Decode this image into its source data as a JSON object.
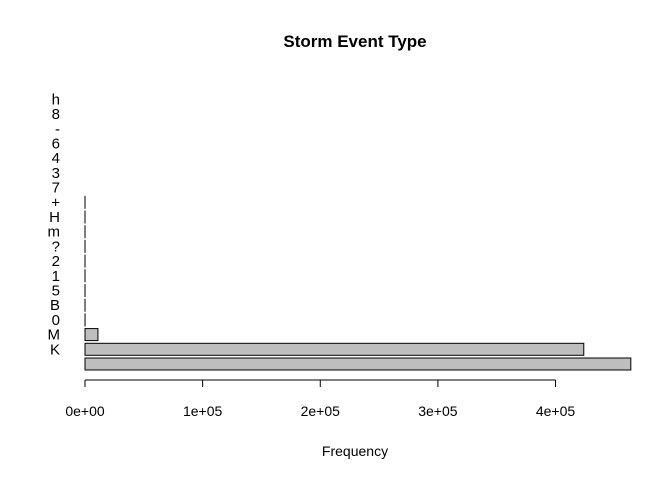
{
  "chart_data": {
    "type": "bar",
    "orientation": "horizontal",
    "title": "Storm Event Type",
    "xlabel": "Frequency",
    "ylabel": "",
    "xlim": [
      0,
      465000
    ],
    "xticks": [
      0,
      100000,
      200000,
      300000,
      400000
    ],
    "xtick_labels": [
      "0e+00",
      "1e+05",
      "2e+05",
      "3e+05",
      "4e+05"
    ],
    "grid": false,
    "categories": [
      "",
      "K",
      "M",
      "0",
      "B",
      "5",
      "1",
      "2",
      "?",
      "m",
      "H",
      "+",
      "7",
      "3",
      "4",
      "6",
      "-",
      "8",
      "h"
    ],
    "values": [
      464000,
      424000,
      11000,
      30,
      20,
      15,
      12,
      10,
      8,
      7,
      6,
      5,
      4,
      4,
      3,
      3,
      2,
      2,
      1
    ],
    "bar_color": "#bebebe",
    "edge_color": "#000000"
  }
}
